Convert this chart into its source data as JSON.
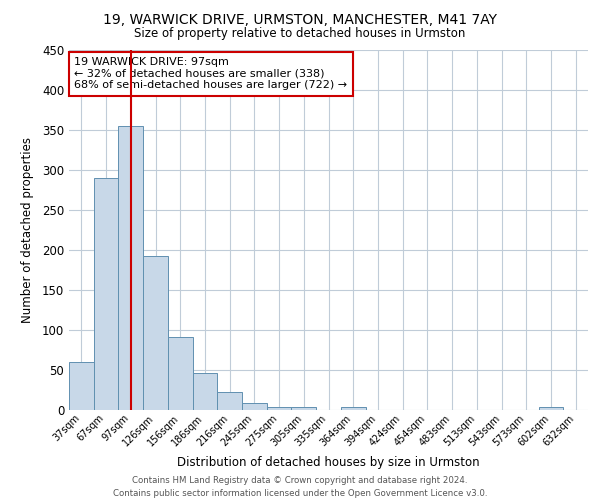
{
  "title1": "19, WARWICK DRIVE, URMSTON, MANCHESTER, M41 7AY",
  "title2": "Size of property relative to detached houses in Urmston",
  "xlabel": "Distribution of detached houses by size in Urmston",
  "ylabel": "Number of detached properties",
  "bar_labels": [
    "37sqm",
    "67sqm",
    "97sqm",
    "126sqm",
    "156sqm",
    "186sqm",
    "216sqm",
    "245sqm",
    "275sqm",
    "305sqm",
    "335sqm",
    "364sqm",
    "394sqm",
    "424sqm",
    "454sqm",
    "483sqm",
    "513sqm",
    "543sqm",
    "573sqm",
    "602sqm",
    "632sqm"
  ],
  "bar_values": [
    60,
    290,
    355,
    192,
    91,
    46,
    22,
    9,
    4,
    4,
    0,
    4,
    0,
    0,
    0,
    0,
    0,
    0,
    0,
    4,
    0
  ],
  "bar_color": "#c8d8e8",
  "bar_edge_color": "#6090b0",
  "vline_x": 2,
  "vline_color": "#cc0000",
  "ylim": [
    0,
    450
  ],
  "yticks": [
    0,
    50,
    100,
    150,
    200,
    250,
    300,
    350,
    400,
    450
  ],
  "annotation_title": "19 WARWICK DRIVE: 97sqm",
  "annotation_line1": "← 32% of detached houses are smaller (338)",
  "annotation_line2": "68% of semi-detached houses are larger (722) →",
  "annotation_box_color": "#ffffff",
  "annotation_box_edge": "#cc0000",
  "footer1": "Contains HM Land Registry data © Crown copyright and database right 2024.",
  "footer2": "Contains public sector information licensed under the Open Government Licence v3.0.",
  "bg_color": "#ffffff",
  "grid_color": "#c0ccd8"
}
